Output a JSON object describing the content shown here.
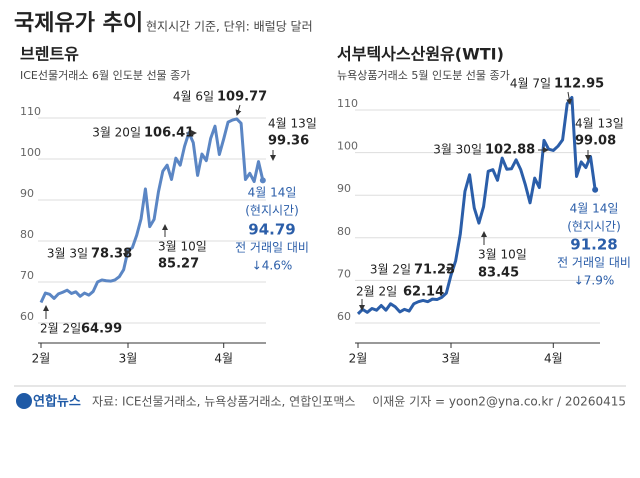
{
  "title": "국제유가 추이",
  "subtitle": "현지시간 기준, 단위: 배럴당 달러",
  "chart_data": [
    {
      "type": "line",
      "title": "브렌트유",
      "subtitle": "ICE선물거래소 6월 인도분 선물 종가",
      "categories": [
        "2월",
        null,
        null,
        null,
        null,
        null,
        null,
        null,
        null,
        null,
        null,
        null,
        null,
        null,
        null,
        null,
        null,
        null,
        null,
        null,
        "3월",
        null,
        null,
        null,
        null,
        null,
        null,
        null,
        null,
        null,
        null,
        null,
        null,
        null,
        null,
        null,
        null,
        null,
        null,
        null,
        null,
        null,
        "4월",
        null,
        null,
        null,
        null,
        null,
        null,
        null,
        null,
        null
      ],
      "series": [
        {
          "name": "브렌트유",
          "color": "#5b86c4",
          "values": [
            64.99,
            67.3,
            67.0,
            66.0,
            67.1,
            67.5,
            68.0,
            67.2,
            67.6,
            66.5,
            67.3,
            66.8,
            67.7,
            70.0,
            70.5,
            70.3,
            70.2,
            70.5,
            71.3,
            73.0,
            77.7,
            78.38,
            81.4,
            85.4,
            92.7,
            83.5,
            85.27,
            92.0,
            97.0,
            98.5,
            95.0,
            100.2,
            98.5,
            103.1,
            106.41,
            104.0,
            96.0,
            101.2,
            99.6,
            105.0,
            108.0,
            101.1,
            104.9,
            109.0,
            109.5,
            109.77,
            108.7,
            95.0,
            96.5,
            94.5,
            99.36,
            94.79
          ]
        }
      ],
      "ylim": [
        58,
        112
      ],
      "yticks": [
        60,
        70,
        80,
        90,
        100,
        110
      ],
      "grid": true,
      "annotations": [
        {
          "date": "2월 2일",
          "value": 64.99
        },
        {
          "date": "3월 3일",
          "value": 78.38
        },
        {
          "date": "3월 10일",
          "value": 85.27
        },
        {
          "date": "3월 20일",
          "value": 106.41
        },
        {
          "date": "4월 6일",
          "value": 109.77
        },
        {
          "date": "4월 13일",
          "value": 99.36
        },
        {
          "date": "4월 14일",
          "note": "(현지시간)",
          "value": 94.79,
          "change_label": "전 거래일 대비",
          "change": "↓4.6%"
        }
      ]
    },
    {
      "type": "line",
      "title": "서부텍사스산원유(WTI)",
      "subtitle": "뉴욕상품거래소 5월 인도분 선물 종가",
      "categories": [
        "2월",
        null,
        null,
        null,
        null,
        null,
        null,
        null,
        null,
        null,
        null,
        null,
        null,
        null,
        null,
        null,
        null,
        null,
        null,
        null,
        "3월",
        null,
        null,
        null,
        null,
        null,
        null,
        null,
        null,
        null,
        null,
        null,
        null,
        null,
        null,
        null,
        null,
        null,
        null,
        null,
        null,
        null,
        "4월",
        null,
        null,
        null,
        null,
        null,
        null,
        null,
        null,
        null
      ],
      "series": [
        {
          "name": "서부텍사스산원유(WTI)",
          "color": "#2b5ea9",
          "values": [
            62.14,
            63.2,
            62.5,
            63.4,
            63.0,
            64.1,
            63.0,
            64.5,
            63.8,
            62.6,
            63.2,
            62.8,
            64.5,
            65.0,
            65.3,
            65.0,
            65.6,
            65.5,
            66.0,
            67.0,
            71.23,
            74.6,
            80.9,
            90.9,
            94.8,
            87.0,
            83.45,
            87.3,
            95.6,
            96.0,
            93.5,
            98.7,
            96.1,
            96.2,
            98.3,
            96.0,
            92.4,
            88.2,
            94.0,
            91.8,
            102.88,
            100.8,
            100.5,
            101.5,
            103.0,
            111.5,
            112.95,
            94.4,
            97.8,
            96.5,
            99.08,
            91.28
          ]
        }
      ],
      "ylim": [
        58,
        115
      ],
      "yticks": [
        60,
        70,
        80,
        90,
        100,
        110
      ],
      "grid": true,
      "annotations": [
        {
          "date": "2월 2일",
          "value": 62.14
        },
        {
          "date": "3월 2일",
          "value": 71.23
        },
        {
          "date": "3월 10일",
          "value": 83.45
        },
        {
          "date": "3월 30일",
          "value": 102.88
        },
        {
          "date": "4월 7일",
          "value": 112.95
        },
        {
          "date": "4월 13일",
          "value": 99.08
        },
        {
          "date": "4월 14일",
          "note": "(현지시간)",
          "value": 91.28,
          "change_label": "전 거래일 대비",
          "change": "↓7.9%"
        }
      ]
    }
  ],
  "footer": {
    "logo": "연합뉴스",
    "source": "자료: ICE선물거래소, 뉴욕상품거래소, 연합인포맥스",
    "credit": "이재윤 기자 = yoon2@yna.co.kr / 20260415"
  }
}
